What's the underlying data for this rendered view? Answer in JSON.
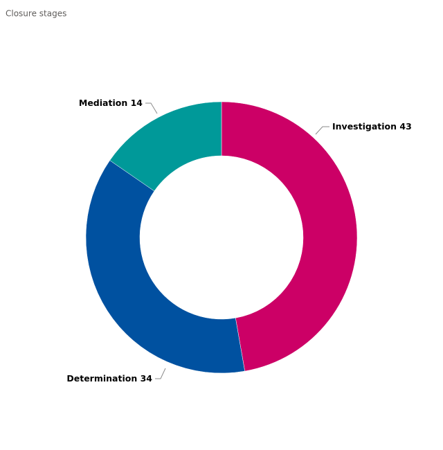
{
  "chart_data": {
    "type": "donut",
    "title": "Closure stages",
    "categories": [
      "Investigation",
      "Determination",
      "Mediation"
    ],
    "values": [
      43,
      34,
      14
    ],
    "colors": [
      "#cc0066",
      "#0051a0",
      "#009999"
    ]
  }
}
